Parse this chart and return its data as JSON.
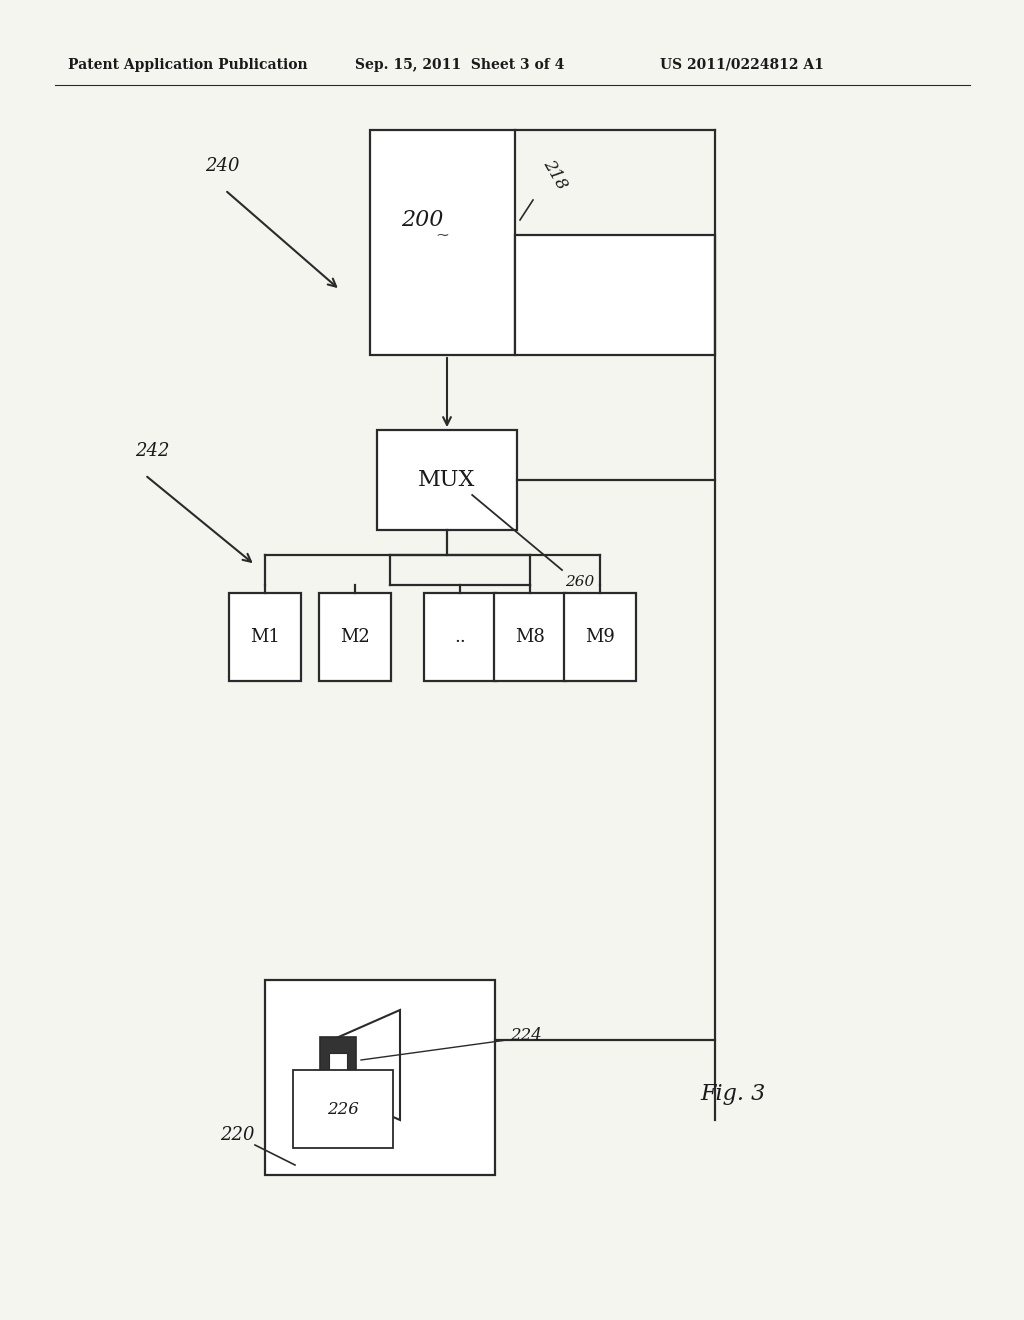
{
  "bg_color": "#f5f5f0",
  "line_color": "#2a2a2a",
  "text_color": "#1a1a1a",
  "header_left": "Patent Application Publication",
  "header_mid": "Sep. 15, 2011  Sheet 3 of 4",
  "header_right": "US 2011/0224812 A1",
  "fig_label": "Fig. 3",
  "label_200": "200",
  "label_218": "218",
  "label_240": "240",
  "label_242": "242",
  "label_260": "260",
  "label_MUX": "MUX",
  "label_220": "220",
  "label_224": "224",
  "label_226": "226",
  "modules": [
    "M1",
    "M2",
    "..",
    "M8",
    "M9"
  ]
}
